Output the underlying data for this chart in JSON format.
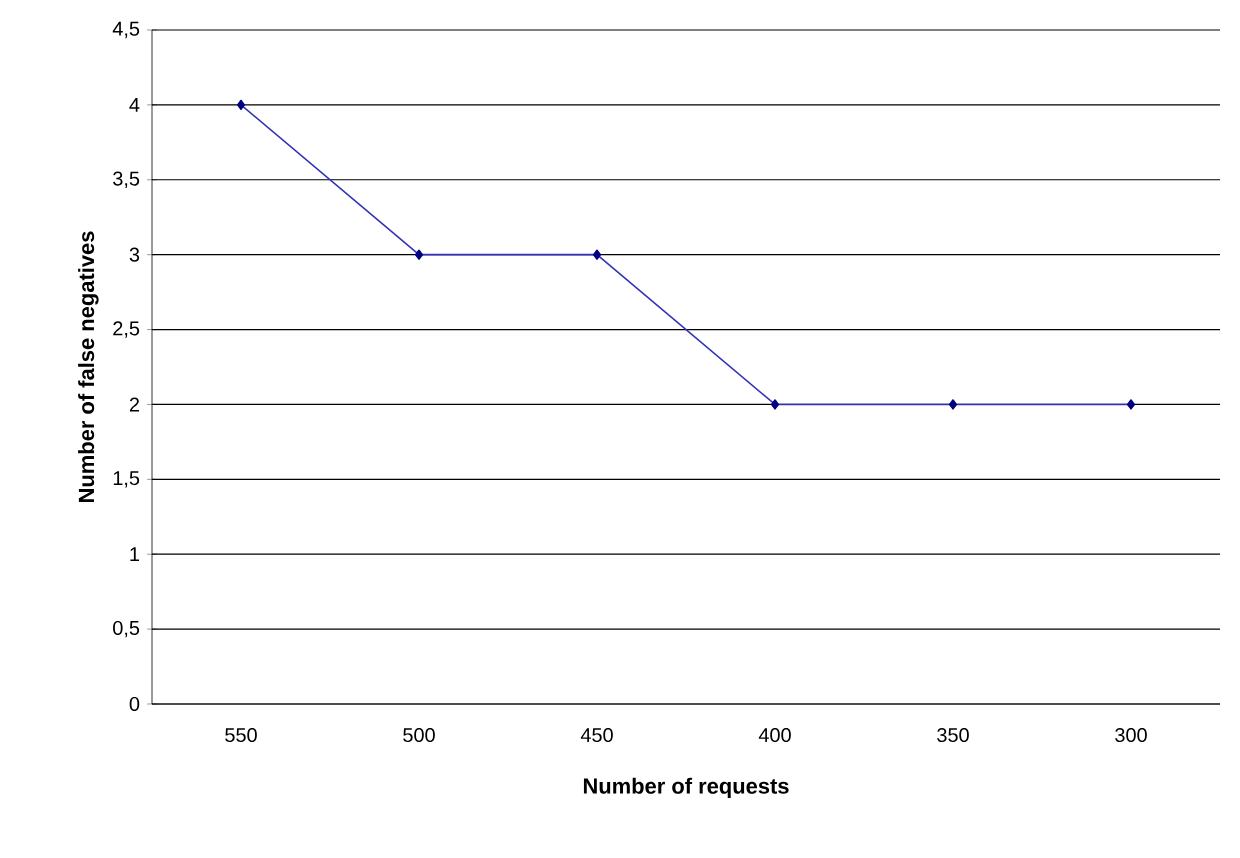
{
  "chart_data": {
    "type": "line",
    "xlabel": "Number of requests",
    "ylabel": "Number of false negatives",
    "categories": [
      "550",
      "500",
      "450",
      "400",
      "350",
      "300"
    ],
    "values": [
      4,
      3,
      3,
      2,
      2,
      2
    ],
    "color": "#000080",
    "marker": "diamond",
    "grid": "y",
    "ylim": [
      0,
      4.5
    ],
    "yticks": [
      {
        "value": 0,
        "label": "0"
      },
      {
        "value": 0.5,
        "label": "0,5"
      },
      {
        "value": 1,
        "label": "1"
      },
      {
        "value": 1.5,
        "label": "1,5"
      },
      {
        "value": 2,
        "label": "2"
      },
      {
        "value": 2.5,
        "label": "2,5"
      },
      {
        "value": 3,
        "label": "3"
      },
      {
        "value": 3.5,
        "label": "3,5"
      },
      {
        "value": 4,
        "label": "4"
      },
      {
        "value": 4.5,
        "label": "4,5"
      }
    ]
  }
}
